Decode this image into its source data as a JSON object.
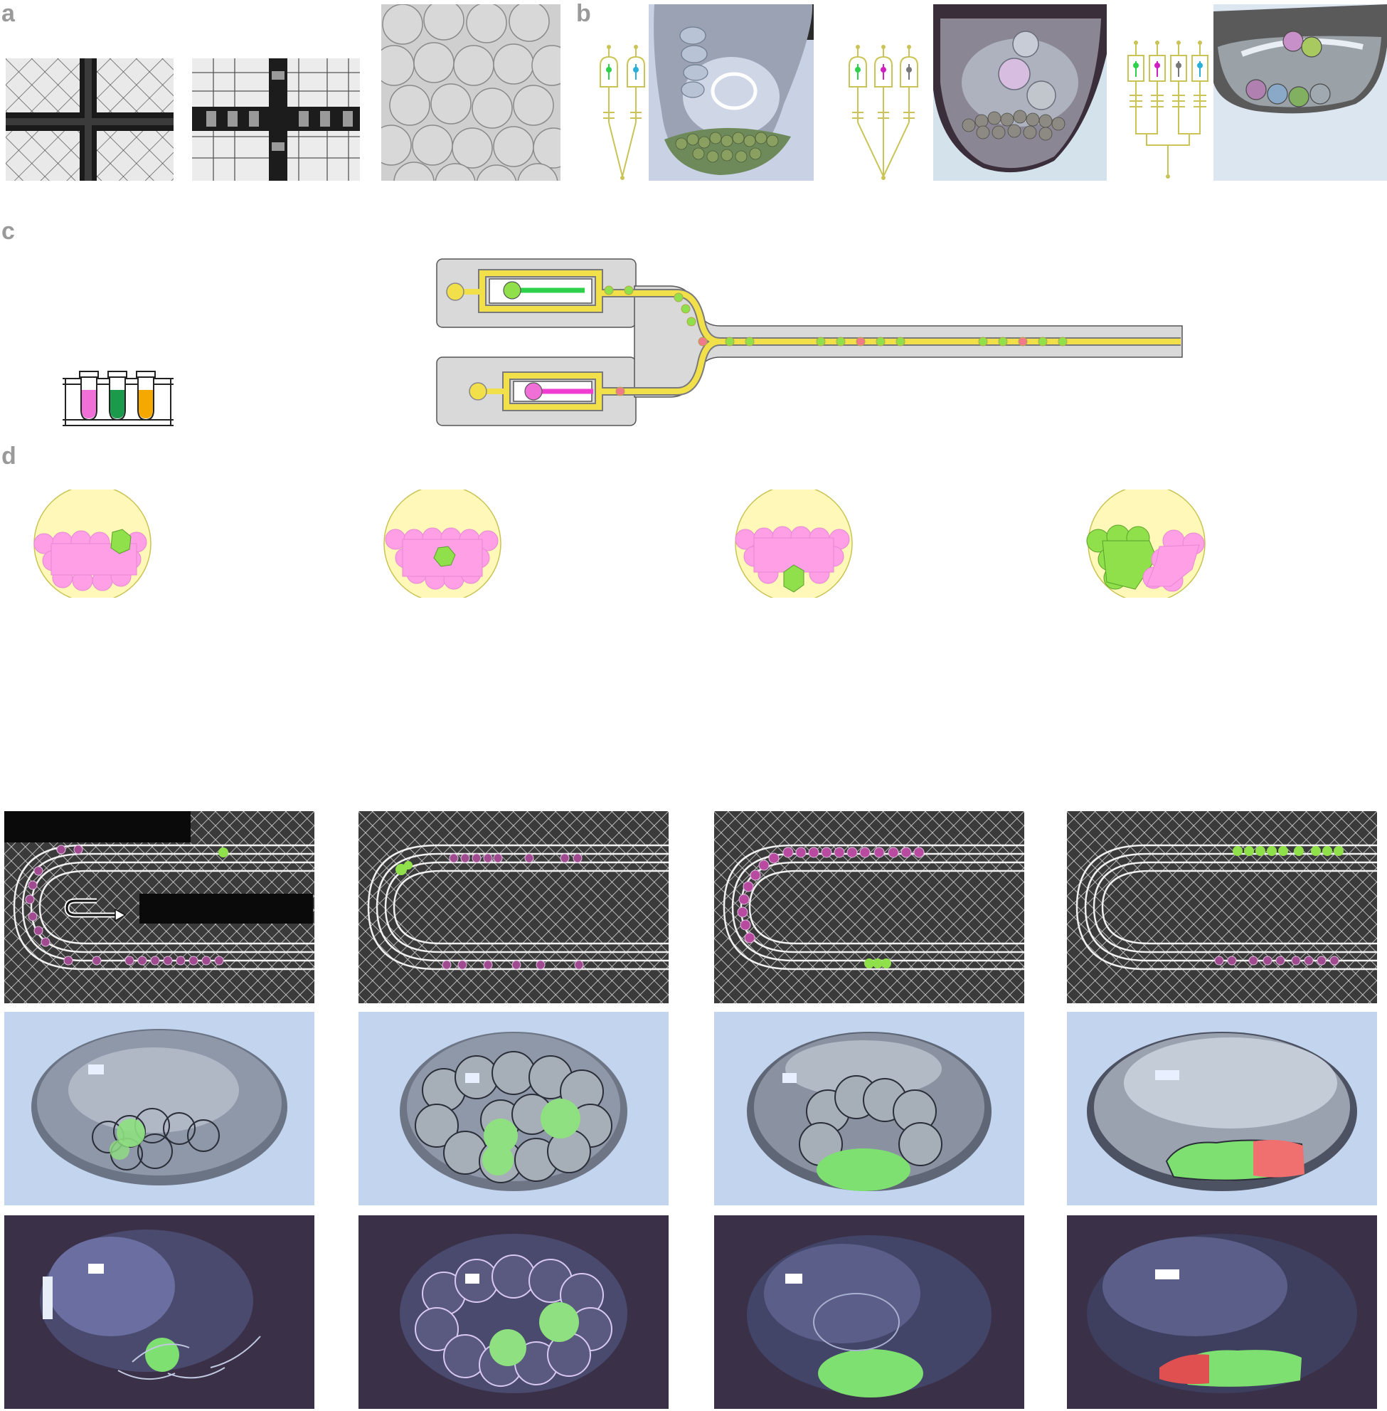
{
  "figure": {
    "panel_labels": {
      "a": "a",
      "b": "b",
      "c": "c",
      "d": "d"
    },
    "colors": {
      "panel_label": "#9a9a9a",
      "chip_outline": "#c9c455",
      "channel_fill": "#f2e04a",
      "chip_body": "#d9d9d9",
      "green_droplet": "#8fe04a",
      "pink_droplet": "#ff9fe6",
      "magenta_stream": "#f03cd0",
      "green_stream": "#2ed14a",
      "cell_background": "#fff8b8",
      "tube_pink": "#f070d8",
      "tube_green": "#1a9a4a",
      "tube_orange": "#f5a800"
    },
    "panel_a": {
      "photos": [
        "mesh-junction-photo",
        "mesh-grid-photo",
        "monodisperse-droplets-photo"
      ]
    },
    "panel_b": {
      "devices": [
        {
          "inlets": 2,
          "drop_colors": [
            "green",
            "cyan"
          ]
        },
        {
          "inlets": 3,
          "drop_colors": [
            "green",
            "magenta",
            "gray"
          ]
        },
        {
          "inlets": 4,
          "drop_colors": [
            "green",
            "magenta",
            "gray",
            "cyan"
          ]
        }
      ]
    },
    "panel_c": {
      "tubes": [
        "pink",
        "green",
        "orange"
      ],
      "streams": [
        "green",
        "magenta"
      ]
    },
    "panel_d": {
      "schematics": [
        {
          "arrangement": "green-top-right"
        },
        {
          "arrangement": "green-center"
        },
        {
          "arrangement": "green-bottom"
        },
        {
          "arrangement": "green-left-half"
        }
      ],
      "photo_rows": [
        "channel-micrograph",
        "brightfield-droplet",
        "fluorescence-droplet"
      ]
    }
  }
}
